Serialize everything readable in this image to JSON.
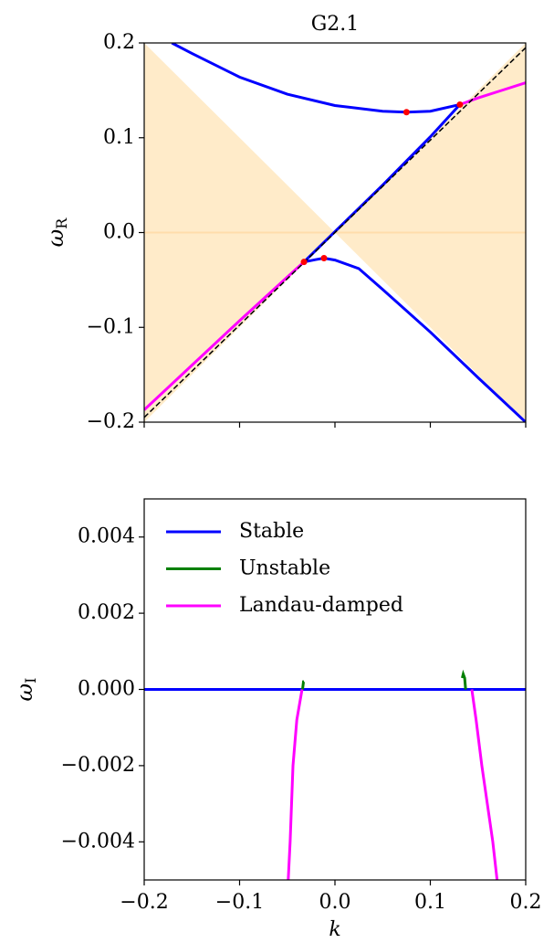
{
  "chart_data": [
    {
      "type": "line",
      "title": "G2.1",
      "ylabel": "ω",
      "ylabel_sub": "R",
      "xlim": [
        -0.2,
        0.2
      ],
      "ylim": [
        -0.2,
        0.2
      ],
      "xticks": [
        -0.2,
        -0.1,
        0,
        0.1,
        0.2
      ],
      "xticklabels": false,
      "yticks": [
        {
          "value": -0.2,
          "label": "−0.2"
        },
        {
          "value": -0.1,
          "label": "−0.1"
        },
        {
          "value": 0,
          "label": "0.0"
        },
        0.1,
        0.2
      ],
      "fill": {
        "x": [
          -0.2,
          0,
          0.2
        ],
        "y1": [
          -0.2,
          0,
          0.2
        ],
        "y2": [
          0.2,
          0,
          -0.2
        ],
        "color": "#ffebc9"
      },
      "hline": {
        "y": 0,
        "color": "#ffdcab"
      },
      "series": [
        {
          "color": "#ff00ff",
          "x": [
            -0.2,
            -0.15,
            -0.1,
            -0.05,
            -0.0325,
            null,
            0.131,
            0.15,
            0.175,
            0.2
          ],
          "values": [
            -0.187,
            -0.14,
            -0.093,
            -0.047,
            -0.031,
            null,
            0.135,
            0.142,
            0.15,
            0.158
          ]
        },
        {
          "color": "#0000ff",
          "x": [
            -0.171,
            -0.15,
            -0.1,
            -0.05,
            0,
            0.05,
            0.075,
            0.1,
            0.131,
            null,
            -0.0325,
            0,
            0.05,
            0.1,
            0.131,
            null,
            -0.0325,
            -0.02,
            -0.0115,
            0,
            0.025,
            0.05,
            0.1,
            0.15,
            0.2
          ],
          "values": [
            0.2,
            0.189,
            0.164,
            0.146,
            0.134,
            0.128,
            0.127,
            0.128,
            0.135,
            null,
            -0.031,
            0.001,
            0.05,
            0.101,
            0.135,
            null,
            -0.031,
            -0.0285,
            -0.027,
            -0.029,
            -0.038,
            -0.06,
            -0.105,
            -0.153,
            -0.2
          ]
        },
        {
          "color": "#000000",
          "dashed": true,
          "x": [
            -0.2,
            0.2
          ],
          "values": [
            -0.195,
            0.195
          ]
        },
        {
          "type": "scatter",
          "color": "#ff0000",
          "x": [
            -0.0325,
            -0.0115,
            0.075,
            0.131
          ],
          "values": [
            -0.031,
            -0.027,
            0.127,
            0.135
          ]
        }
      ]
    },
    {
      "type": "line",
      "xlabel": "k",
      "ylabel": "ω",
      "ylabel_sub": "I",
      "xlim": [
        -0.2,
        0.2
      ],
      "ylim": [
        -0.005,
        0.005
      ],
      "xticks": [
        {
          "value": -0.2,
          "label": "−0.2"
        },
        {
          "value": -0.1,
          "label": "−0.1"
        },
        {
          "value": 0,
          "label": "0.0"
        },
        0.1,
        0.2
      ],
      "yticks": [
        {
          "value": -0.004,
          "label": "−0.004"
        },
        {
          "value": -0.002,
          "label": "−0.002"
        },
        {
          "value": 0,
          "label": "0.000"
        },
        0.002,
        0.004
      ],
      "legend": "upper left",
      "series": [
        {
          "name": "Stable",
          "color": "#0000ff",
          "x": [
            -0.2,
            0.2
          ],
          "values": [
            0,
            0
          ]
        },
        {
          "name": "Unstable",
          "color": "#008000",
          "x": [
            -0.034,
            -0.0335,
            -0.033,
            -0.0325,
            null,
            0.137,
            0.136,
            0.1345,
            0.1335
          ],
          "values": [
            0,
            0.0001,
            0.0002,
            0.0002,
            null,
            0,
            0.0003,
            0.0004,
            0.0003
          ]
        },
        {
          "name": "Landau-damped",
          "color": "#ff00ff",
          "x": [
            -0.049,
            -0.047,
            -0.044,
            -0.04,
            -0.0345,
            null,
            0.1435,
            0.148,
            0.154,
            0.1655,
            0.17
          ],
          "values": [
            -0.005,
            -0.004,
            -0.002,
            -0.0008,
            0,
            null,
            0,
            -0.0008,
            -0.002,
            -0.004,
            -0.005
          ]
        }
      ]
    }
  ]
}
